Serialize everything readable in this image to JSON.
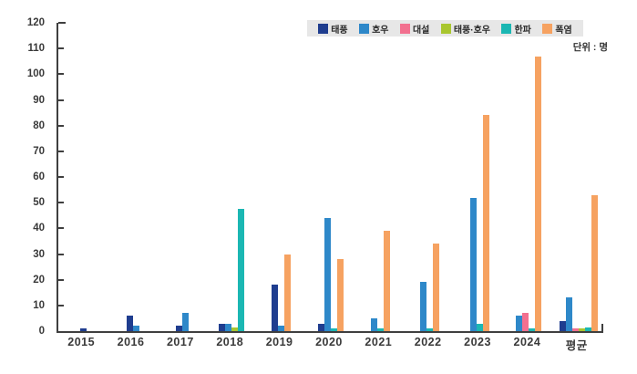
{
  "chart_data": {
    "type": "bar",
    "title": "",
    "unit_label": "단위 : 명",
    "categories": [
      "2015",
      "2016",
      "2017",
      "2018",
      "2019",
      "2020",
      "2021",
      "2022",
      "2023",
      "2024",
      "평균"
    ],
    "series": [
      {
        "name": "태풍",
        "color": "#1f3d8f",
        "values": [
          1,
          6,
          2,
          3,
          18,
          3,
          0,
          0,
          0,
          0,
          4
        ]
      },
      {
        "name": "호우",
        "color": "#2e88c9",
        "values": [
          0,
          2,
          7,
          3,
          2,
          44,
          5,
          19,
          52,
          6,
          13
        ]
      },
      {
        "name": "대설",
        "color": "#f2708f",
        "values": [
          0,
          0,
          0,
          0,
          0,
          0,
          0,
          0,
          0,
          7,
          1
        ]
      },
      {
        "name": "태풍·호우",
        "color": "#a9c62f",
        "values": [
          0,
          0,
          0,
          1.5,
          0,
          0,
          0,
          0,
          0,
          0,
          1
        ]
      },
      {
        "name": "한파",
        "color": "#1bb7b3",
        "values": [
          0,
          0,
          0,
          47.5,
          0,
          1,
          1,
          1,
          3,
          1,
          1.5
        ]
      },
      {
        "name": "폭염",
        "color": "#f6a261",
        "values": [
          0,
          0,
          0,
          0,
          30,
          28,
          39,
          34,
          84,
          107,
          53
        ]
      }
    ],
    "ylim": [
      0,
      120
    ],
    "ytick_step": 10,
    "grid": false,
    "legend_position": "top-right"
  },
  "style_colors": {
    "axis": "#3f3f3f",
    "tick_text": "#3a3a3a",
    "legend_background": "#e7e7e7",
    "page_background": "#ffffff"
  }
}
